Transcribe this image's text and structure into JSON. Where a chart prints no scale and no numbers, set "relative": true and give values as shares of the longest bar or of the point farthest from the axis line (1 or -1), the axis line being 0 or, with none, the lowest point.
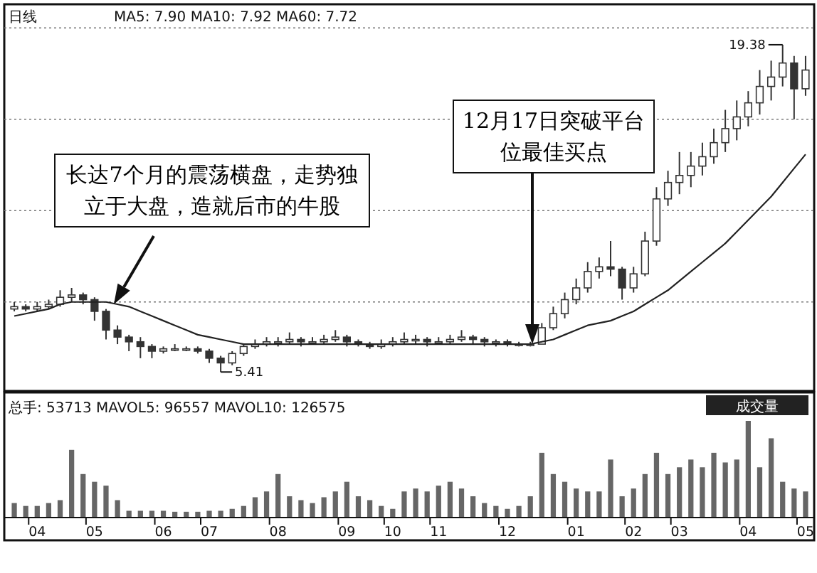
{
  "chart_data": [
    {
      "type": "candlestick",
      "title": "日线",
      "subtitle": "MA5: 7.90 MA10: 7.92 MA60: 7.72",
      "categories": [
        null,
        null,
        null,
        null,
        null,
        null,
        null,
        null,
        null,
        null,
        null,
        null,
        null,
        null,
        null,
        null,
        null,
        null,
        null,
        null,
        null,
        null,
        null,
        null,
        null,
        null,
        null,
        null,
        null,
        null,
        null,
        null,
        null,
        null,
        null,
        null,
        null,
        null,
        null,
        null,
        null,
        null,
        null,
        null,
        null,
        null,
        null,
        null,
        null,
        null,
        null,
        null,
        null,
        null,
        null,
        null,
        null,
        null,
        null,
        null,
        null,
        null,
        null,
        null,
        null,
        null,
        null,
        null,
        null,
        null
      ],
      "ohlc": [
        [
          8.1,
          8.4,
          8.0,
          8.2
        ],
        [
          8.2,
          8.3,
          8.0,
          8.1
        ],
        [
          8.1,
          8.4,
          8.0,
          8.2
        ],
        [
          8.2,
          8.5,
          8.1,
          8.3
        ],
        [
          8.3,
          8.9,
          8.2,
          8.6
        ],
        [
          8.6,
          9.0,
          8.4,
          8.7
        ],
        [
          8.7,
          8.8,
          8.3,
          8.5
        ],
        [
          8.5,
          8.6,
          7.6,
          8.0
        ],
        [
          8.0,
          8.1,
          6.8,
          7.2
        ],
        [
          7.2,
          7.4,
          6.6,
          6.9
        ],
        [
          6.9,
          7.0,
          6.3,
          6.7
        ],
        [
          6.7,
          6.9,
          6.0,
          6.5
        ],
        [
          6.5,
          6.6,
          6.0,
          6.3
        ],
        [
          6.3,
          6.5,
          6.2,
          6.4
        ],
        [
          6.4,
          6.6,
          6.3,
          6.4
        ],
        [
          6.4,
          6.5,
          6.3,
          6.4
        ],
        [
          6.4,
          6.5,
          6.2,
          6.3
        ],
        [
          6.3,
          6.4,
          5.8,
          6.0
        ],
        [
          6.0,
          6.1,
          5.41,
          5.8
        ],
        [
          5.8,
          6.3,
          5.7,
          6.2
        ],
        [
          6.2,
          6.6,
          6.1,
          6.5
        ],
        [
          6.5,
          6.8,
          6.4,
          6.6
        ],
        [
          6.6,
          6.9,
          6.5,
          6.7
        ],
        [
          6.7,
          6.9,
          6.5,
          6.7
        ],
        [
          6.7,
          7.1,
          6.6,
          6.8
        ],
        [
          6.8,
          6.9,
          6.5,
          6.7
        ],
        [
          6.7,
          6.9,
          6.6,
          6.7
        ],
        [
          6.7,
          7.0,
          6.6,
          6.8
        ],
        [
          6.8,
          7.2,
          6.7,
          6.9
        ],
        [
          6.9,
          7.0,
          6.5,
          6.7
        ],
        [
          6.7,
          6.8,
          6.5,
          6.6
        ],
        [
          6.6,
          6.7,
          6.4,
          6.5
        ],
        [
          6.5,
          6.8,
          6.4,
          6.6
        ],
        [
          6.6,
          6.9,
          6.5,
          6.7
        ],
        [
          6.7,
          7.1,
          6.6,
          6.8
        ],
        [
          6.8,
          7.0,
          6.6,
          6.8
        ],
        [
          6.8,
          6.9,
          6.5,
          6.7
        ],
        [
          6.7,
          6.9,
          6.6,
          6.7
        ],
        [
          6.7,
          7.0,
          6.6,
          6.8
        ],
        [
          6.8,
          7.2,
          6.7,
          6.9
        ],
        [
          6.9,
          7.0,
          6.6,
          6.8
        ],
        [
          6.8,
          6.9,
          6.5,
          6.7
        ],
        [
          6.7,
          6.8,
          6.5,
          6.7
        ],
        [
          6.7,
          6.8,
          6.5,
          6.6
        ],
        [
          6.6,
          6.7,
          6.5,
          6.6
        ],
        [
          6.6,
          6.7,
          6.5,
          6.6
        ],
        [
          6.6,
          7.5,
          6.6,
          7.3
        ],
        [
          7.3,
          8.2,
          7.2,
          7.9
        ],
        [
          7.9,
          8.8,
          7.7,
          8.5
        ],
        [
          8.5,
          9.4,
          8.3,
          9.0
        ],
        [
          9.0,
          10.1,
          8.8,
          9.7
        ],
        [
          9.7,
          10.3,
          9.4,
          9.9
        ],
        [
          9.9,
          11.0,
          9.5,
          9.8
        ],
        [
          9.8,
          9.9,
          8.5,
          9.0
        ],
        [
          9.0,
          9.9,
          8.8,
          9.6
        ],
        [
          9.6,
          11.4,
          9.5,
          11.0
        ],
        [
          11.0,
          13.3,
          10.8,
          12.8
        ],
        [
          12.8,
          14.0,
          12.5,
          13.5
        ],
        [
          13.5,
          14.8,
          13.0,
          13.8
        ],
        [
          13.8,
          14.8,
          13.3,
          14.2
        ],
        [
          14.2,
          15.2,
          13.8,
          14.6
        ],
        [
          14.6,
          15.8,
          14.3,
          15.2
        ],
        [
          15.2,
          16.6,
          14.8,
          15.8
        ],
        [
          15.8,
          17.0,
          15.3,
          16.3
        ],
        [
          16.3,
          17.4,
          15.9,
          16.9
        ],
        [
          16.9,
          18.3,
          16.4,
          17.6
        ],
        [
          17.6,
          18.7,
          17.0,
          18.0
        ],
        [
          18.0,
          19.38,
          17.6,
          18.6
        ],
        [
          18.6,
          18.9,
          16.2,
          17.5
        ],
        [
          17.5,
          18.9,
          17.2,
          18.3
        ]
      ],
      "color": "#333333",
      "series": [
        {
          "type": "line",
          "color": "#222222",
          "values": [
            7.8,
            7.9,
            8.0,
            8.1,
            8.3,
            8.4,
            8.4,
            8.4,
            8.4,
            8.3,
            8.2,
            8.0,
            7.8,
            7.6,
            7.4,
            7.2,
            7.0,
            6.9,
            6.8,
            6.7,
            6.6,
            6.6,
            6.6,
            6.6,
            6.6,
            6.6,
            6.6,
            6.6,
            6.6,
            6.6,
            6.6,
            6.6,
            6.6,
            6.6,
            6.6,
            6.6,
            6.6,
            6.6,
            6.6,
            6.6,
            6.6,
            6.6,
            6.6,
            6.6,
            6.6,
            6.6,
            6.7,
            6.8,
            7.0,
            7.2,
            7.4,
            7.5,
            7.6,
            7.8,
            8.0,
            8.3,
            8.6,
            8.9,
            9.3,
            9.7,
            10.1,
            10.5,
            10.9,
            11.4,
            11.9,
            12.4,
            12.9,
            13.5,
            14.1,
            14.7
          ]
        }
      ],
      "yticks": [
        {
          "value": 8.4,
          "label": null
        },
        {
          "value": 12.3,
          "label": null
        },
        {
          "value": 16.2,
          "label": null
        },
        {
          "value": 20.1,
          "label": null
        }
      ],
      "grid": "y",
      "tick_labels": false,
      "annotations": [
        "长达7个月的震荡横盘，走势独立于大盘，造就后市的牛股",
        "12月17日突破平台位最佳买点",
        "19.38",
        "5.41"
      ]
    },
    {
      "type": "bar",
      "title": "总手: 53713 MAVOL5: 96557 MAVOL10: 126575",
      "subtitle": "成交量",
      "categories": [
        null,
        null,
        "04",
        null,
        null,
        null,
        null,
        "05",
        null,
        null,
        null,
        null,
        null,
        "06",
        null,
        null,
        null,
        "07",
        null,
        null,
        null,
        null,
        null,
        "08",
        null,
        null,
        null,
        null,
        null,
        "09",
        null,
        null,
        null,
        "10",
        null,
        null,
        null,
        "11",
        null,
        null,
        null,
        null,
        null,
        "12",
        null,
        null,
        null,
        null,
        null,
        "01",
        null,
        null,
        null,
        null,
        "02",
        null,
        null,
        null,
        "03",
        null,
        null,
        null,
        null,
        null,
        "04",
        null,
        null,
        null,
        null,
        "05"
      ],
      "values": [
        0.15,
        0.12,
        0.12,
        0.15,
        0.18,
        0.7,
        0.45,
        0.37,
        0.33,
        0.18,
        0.07,
        0.07,
        0.07,
        0.07,
        0.06,
        0.06,
        0.06,
        0.07,
        0.07,
        0.09,
        0.12,
        0.21,
        0.27,
        0.45,
        0.22,
        0.18,
        0.15,
        0.21,
        0.27,
        0.37,
        0.22,
        0.18,
        0.12,
        0.09,
        0.27,
        0.3,
        0.27,
        0.33,
        0.37,
        0.3,
        0.22,
        0.15,
        0.12,
        0.09,
        0.12,
        0.22,
        0.67,
        0.45,
        0.37,
        0.3,
        0.27,
        0.27,
        0.6,
        0.22,
        0.3,
        0.45,
        0.67,
        0.45,
        0.52,
        0.6,
        0.52,
        0.67,
        0.57,
        0.6,
        1,
        0.52,
        0.82,
        0.37,
        0.3,
        0.27
      ],
      "color": "#666666",
      "relative": true,
      "tick_labels": "x"
    }
  ]
}
